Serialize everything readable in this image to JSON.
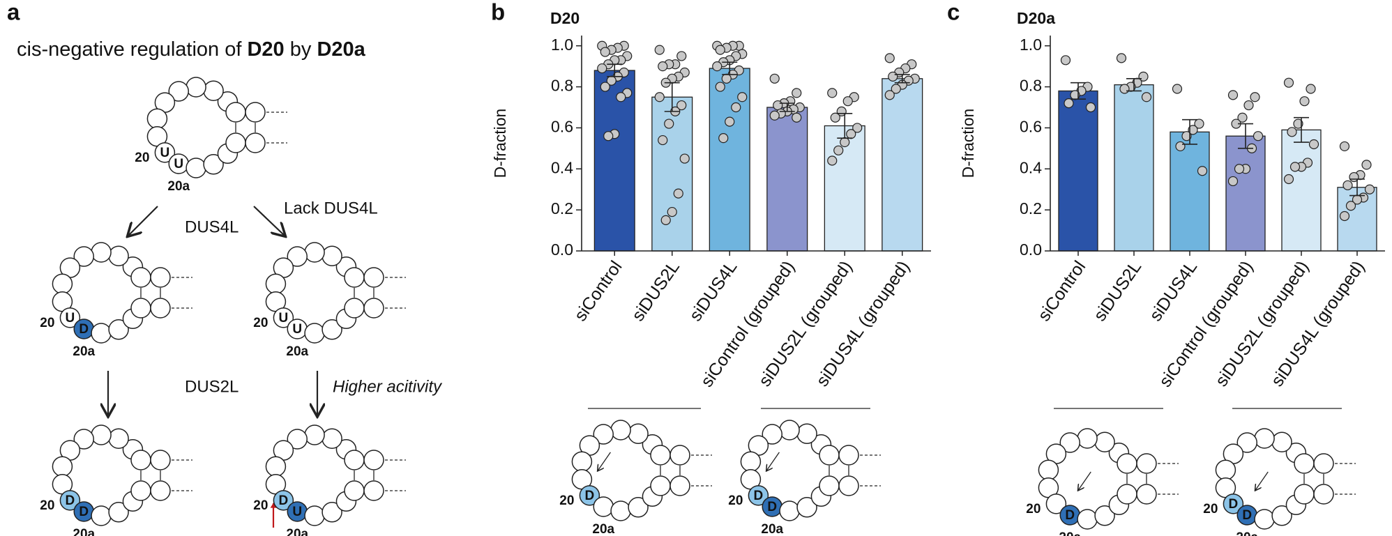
{
  "panel_labels": [
    "a",
    "b",
    "c"
  ],
  "panel_a": {
    "title_parts": [
      "cis-negative regulation of ",
      "D20",
      " by ",
      "D20a"
    ],
    "step_labels": [
      "DUS4L",
      "Lack DUS4L",
      "DUS2L",
      "Higher acitivity"
    ],
    "loops": [
      {
        "n20": "U",
        "n20a": "U",
        "pos20": "20",
        "pos20a": "20a"
      },
      {
        "n20": "U",
        "n20a": "D",
        "fill20a": "#2f6fb5",
        "pos20": "20",
        "pos20a": "20a"
      },
      {
        "n20": "U",
        "n20a": "U",
        "pos20": "20",
        "pos20a": "20a"
      },
      {
        "n20": "D",
        "n20a": "D",
        "fill20": "#8cc4e8",
        "fill20a": "#2f6fb5",
        "pos20": "20",
        "pos20a": "20a"
      },
      {
        "n20": "D",
        "n20a": "U",
        "fill20": "#8cc4e8",
        "fill20a": "#2f6fb5",
        "color20": "#d62728",
        "pos20": "20",
        "pos20a": "20a"
      }
    ]
  },
  "panel_b_loops": [
    {
      "n20": "D",
      "fill20": "#8cc4e8",
      "pos20": "20",
      "pos20a": "20a"
    },
    {
      "n20": "D",
      "n20a": "D",
      "fill20": "#8cc4e8",
      "fill20a": "#2f6fb5",
      "pos20": "20",
      "pos20a": "20a"
    }
  ],
  "panel_c_loops": [
    {
      "n20a": "D",
      "fill20a": "#2f6fb5",
      "pos20": "20",
      "pos20a": "20a"
    },
    {
      "n20": "D",
      "n20a": "D",
      "fill20": "#8cc4e8",
      "fill20a": "#2f6fb5",
      "pos20": "20",
      "pos20a": "20a"
    }
  ],
  "chart_data": [
    {
      "type": "bar",
      "title": "D20",
      "y_label": "D-fraction",
      "categories": [
        "siControl",
        "siDUS2L",
        "siDUS4L",
        "siControl (grouped)",
        "siDUS2L (grouped)",
        "siDUS4L (grouped)"
      ],
      "colors": [
        "#2a53a8",
        "#a9d2ea",
        "#6fb4de",
        "#8b94cd",
        "#d6e9f5",
        "#b8d9ef"
      ],
      "values": [
        0.88,
        0.75,
        0.89,
        0.7,
        0.61,
        0.84
      ],
      "errors": [
        0.03,
        0.07,
        0.03,
        0.02,
        0.06,
        0.02
      ],
      "points": [
        [
          1.0,
          1.0,
          0.99,
          0.98,
          0.97,
          0.95,
          0.93,
          0.93,
          0.91,
          0.89,
          0.87,
          0.85,
          0.83,
          0.8,
          0.77,
          0.75,
          0.57,
          0.56
        ],
        [
          0.98,
          0.95,
          0.91,
          0.91,
          0.9,
          0.87,
          0.85,
          0.84,
          0.82,
          0.75,
          0.71,
          0.68,
          0.62,
          0.54,
          0.45,
          0.28,
          0.19,
          0.15
        ],
        [
          1.0,
          1.0,
          1.0,
          0.99,
          0.98,
          0.96,
          0.95,
          0.93,
          0.92,
          0.9,
          0.88,
          0.86,
          0.84,
          0.8,
          0.75,
          0.7,
          0.63,
          0.55
        ],
        [
          0.84,
          0.77,
          0.73,
          0.72,
          0.71,
          0.7,
          0.69,
          0.68,
          0.67,
          0.66,
          0.65
        ],
        [
          0.77,
          0.75,
          0.73,
          0.68,
          0.65,
          0.6,
          0.57,
          0.53,
          0.49,
          0.44
        ],
        [
          0.94,
          0.91,
          0.89,
          0.87,
          0.85,
          0.84,
          0.83,
          0.81,
          0.79,
          0.76
        ]
      ],
      "ylim": [
        0,
        1.05
      ],
      "yticks": [
        {
          "value": 0,
          "label": "0.0"
        },
        0.2,
        0.4,
        0.6,
        0.8,
        {
          "value": 1,
          "label": "1.0"
        }
      ]
    },
    {
      "type": "bar",
      "title": "D20a",
      "y_label": "D-fraction",
      "categories": [
        "siControl",
        "siDUS2L",
        "siDUS4L",
        "siControl (grouped)",
        "siDUS2L (grouped)",
        "siDUS4L (grouped)"
      ],
      "colors": [
        "#2a53a8",
        "#a9d2ea",
        "#6fb4de",
        "#8b94cd",
        "#d6e9f5",
        "#b8d9ef"
      ],
      "values": [
        0.78,
        0.81,
        0.58,
        0.56,
        0.59,
        0.31
      ],
      "errors": [
        0.04,
        0.03,
        0.06,
        0.06,
        0.06,
        0.04
      ],
      "points": [
        [
          0.93,
          0.8,
          0.78,
          0.76,
          0.72,
          0.7
        ],
        [
          0.94,
          0.85,
          0.82,
          0.8,
          0.79,
          0.75
        ],
        [
          0.79,
          0.62,
          0.59,
          0.56,
          0.51,
          0.39
        ],
        [
          0.76,
          0.75,
          0.71,
          0.65,
          0.62,
          0.56,
          0.5,
          0.4,
          0.4,
          0.34
        ],
        [
          0.82,
          0.79,
          0.73,
          0.62,
          0.58,
          0.52,
          0.43,
          0.41,
          0.41,
          0.35
        ],
        [
          0.51,
          0.42,
          0.37,
          0.36,
          0.32,
          0.3,
          0.26,
          0.25,
          0.22,
          0.17
        ]
      ],
      "ylim": [
        0,
        1.05
      ],
      "yticks": [
        {
          "value": 0,
          "label": "0.0"
        },
        0.2,
        0.4,
        0.6,
        0.8,
        {
          "value": 1,
          "label": "1.0"
        }
      ]
    }
  ]
}
